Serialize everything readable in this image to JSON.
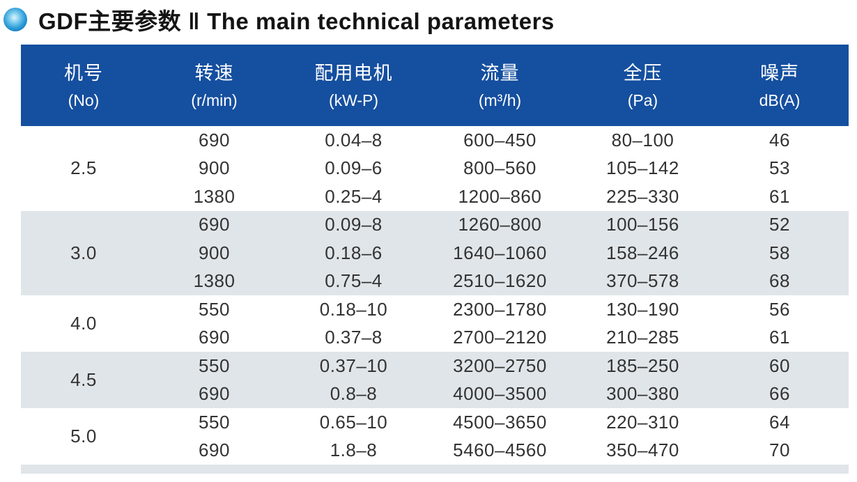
{
  "title": {
    "zh": "GDF主要参数",
    "separator": "‖",
    "en": "The main technical parameters",
    "bullet_icon": "blue-sphere-icon"
  },
  "colors": {
    "header_bg": "#154F9F",
    "band_gray": "#E0E5E9",
    "title_text": "#141414",
    "body_text": "#333333",
    "bullet_blue": "#0D74BA"
  },
  "table": {
    "columns": [
      {
        "zh": "机号",
        "unit": "(No)"
      },
      {
        "zh": "转速",
        "unit": "(r/min)"
      },
      {
        "zh": "配用电机",
        "unit": "(kW-P)"
      },
      {
        "zh": "流量",
        "unit": "(m³/h)"
      },
      {
        "zh": "全压",
        "unit": "(Pa)"
      },
      {
        "zh": "噪声",
        "unit": "dB(A)"
      }
    ],
    "groups": [
      {
        "no": "2.5",
        "shaded": false,
        "rows": [
          {
            "speed": "690",
            "motor": "0.04–8",
            "flow": "600–450",
            "pressure": "80–100",
            "noise": "46"
          },
          {
            "speed": "900",
            "motor": "0.09–6",
            "flow": "800–560",
            "pressure": "105–142",
            "noise": "53"
          },
          {
            "speed": "1380",
            "motor": "0.25–4",
            "flow": "1200–860",
            "pressure": "225–330",
            "noise": "61"
          }
        ]
      },
      {
        "no": "3.0",
        "shaded": true,
        "rows": [
          {
            "speed": "690",
            "motor": "0.09–8",
            "flow": "1260–800",
            "pressure": "100–156",
            "noise": "52"
          },
          {
            "speed": "900",
            "motor": "0.18–6",
            "flow": "1640–1060",
            "pressure": "158–246",
            "noise": "58"
          },
          {
            "speed": "1380",
            "motor": "0.75–4",
            "flow": "2510–1620",
            "pressure": "370–578",
            "noise": "68"
          }
        ]
      },
      {
        "no": "4.0",
        "shaded": false,
        "rows": [
          {
            "speed": "550",
            "motor": "0.18–10",
            "flow": "2300–1780",
            "pressure": "130–190",
            "noise": "56"
          },
          {
            "speed": "690",
            "motor": "0.37–8",
            "flow": "2700–2120",
            "pressure": "210–285",
            "noise": "61"
          }
        ]
      },
      {
        "no": "4.5",
        "shaded": true,
        "rows": [
          {
            "speed": "550",
            "motor": "0.37–10",
            "flow": "3200–2750",
            "pressure": "185–250",
            "noise": "60"
          },
          {
            "speed": "690",
            "motor": "0.8–8",
            "flow": "4000–3500",
            "pressure": "300–380",
            "noise": "66"
          }
        ]
      },
      {
        "no": "5.0",
        "shaded": false,
        "rows": [
          {
            "speed": "550",
            "motor": "0.65–10",
            "flow": "4500–3650",
            "pressure": "220–310",
            "noise": "64"
          },
          {
            "speed": "690",
            "motor": "1.8–8",
            "flow": "5460–4560",
            "pressure": "350–470",
            "noise": "70"
          }
        ]
      }
    ]
  }
}
